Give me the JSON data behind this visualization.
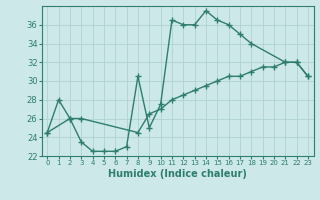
{
  "line1_x": [
    0,
    1,
    2,
    3,
    4,
    5,
    6,
    7,
    8,
    9,
    10,
    11,
    12,
    13,
    14,
    15,
    16,
    17,
    18,
    21,
    22,
    23
  ],
  "line1_y": [
    24.5,
    28.0,
    26.0,
    23.5,
    22.5,
    22.5,
    22.5,
    23.0,
    30.5,
    25.0,
    27.5,
    36.5,
    36.0,
    36.0,
    37.5,
    36.5,
    36.0,
    35.0,
    34.0,
    32.0,
    32.0,
    30.5
  ],
  "line2_x": [
    0,
    2,
    3,
    8,
    9,
    10,
    11,
    12,
    13,
    14,
    15,
    16,
    17,
    18,
    19,
    20,
    21,
    22,
    23
  ],
  "line2_y": [
    24.5,
    26.0,
    26.0,
    24.5,
    26.5,
    27.0,
    28.0,
    28.5,
    29.0,
    29.5,
    30.0,
    30.5,
    30.5,
    31.0,
    31.5,
    31.5,
    32.0,
    32.0,
    30.5
  ],
  "color": "#2e7d6e",
  "bg_color": "#cce8e8",
  "grid_color": "#aacece",
  "xlabel": "Humidex (Indice chaleur)",
  "ylim": [
    22,
    38
  ],
  "xlim": [
    -0.5,
    23.5
  ],
  "yticks": [
    22,
    24,
    26,
    28,
    30,
    32,
    34,
    36
  ],
  "xticks": [
    0,
    1,
    2,
    3,
    4,
    5,
    6,
    7,
    8,
    9,
    10,
    11,
    12,
    13,
    14,
    15,
    16,
    17,
    18,
    19,
    20,
    21,
    22,
    23
  ],
  "xtick_labels": [
    "0",
    "1",
    "2",
    "3",
    "4",
    "5",
    "6",
    "7",
    "8",
    "9",
    "10",
    "11",
    "12",
    "13",
    "14",
    "15",
    "16",
    "17",
    "18",
    "19",
    "20",
    "21",
    "22",
    "23"
  ],
  "marker": "+",
  "linewidth": 1.0,
  "markersize": 4
}
